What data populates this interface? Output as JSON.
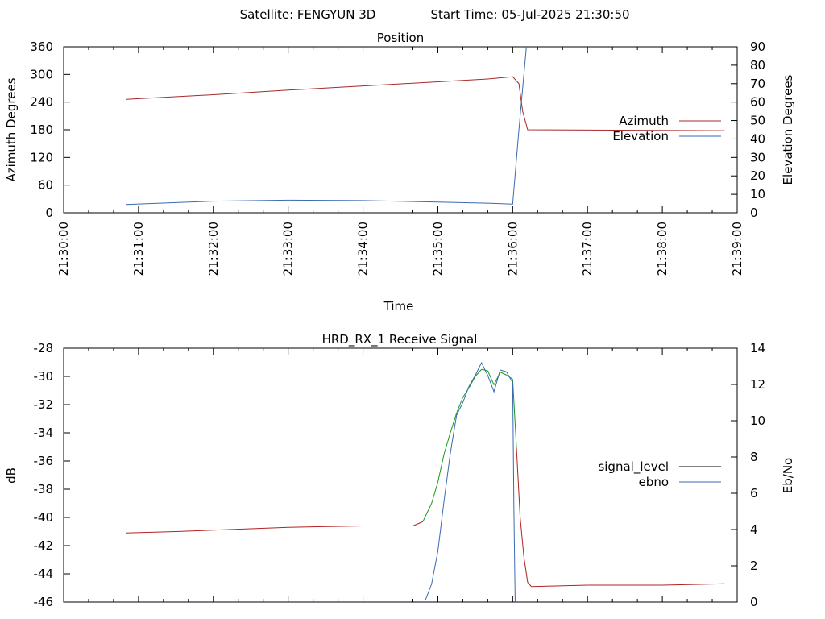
{
  "header": {
    "satellite": "Satellite: FENGYUN 3D",
    "start_time": "Start Time: 05-Jul-2025 21:30:50"
  },
  "colors": {
    "azimuth": "#a52a2a",
    "elevation": "#3a6ab0",
    "signal_level": "#000000",
    "ebno": "#3a6ab0",
    "signal_red": "#b22222",
    "signal_green": "#1a9a1a"
  },
  "chart_data": [
    {
      "type": "line",
      "title": "Position",
      "xlabel": "Time",
      "ylabel": "Azimuth Degrees",
      "y2label": "Elevation Degrees",
      "xlim": [
        "21:30:00",
        "21:39:00"
      ],
      "ylim": [
        0,
        360
      ],
      "y2lim": [
        0,
        90
      ],
      "x_ticks": [
        "21:30:00",
        "21:31:00",
        "21:32:00",
        "21:33:00",
        "21:34:00",
        "21:35:00",
        "21:36:00",
        "21:37:00",
        "21:38:00",
        "21:39:00"
      ],
      "y_ticks": [
        "0",
        "60",
        "120",
        "180",
        "240",
        "300",
        "360"
      ],
      "y2_ticks": [
        "0",
        "10",
        "20",
        "30",
        "40",
        "50",
        "60",
        "70",
        "80",
        "90"
      ],
      "legend_position": "right",
      "series": [
        {
          "name": "Azimuth",
          "axis": "y",
          "x": [
            "21:30:50",
            "21:32:00",
            "21:33:00",
            "21:34:00",
            "21:35:00",
            "21:35:40",
            "21:36:00",
            "21:36:05",
            "21:36:08",
            "21:36:12",
            "21:38:50"
          ],
          "y": [
            246,
            256,
            266,
            275,
            284,
            290,
            295,
            280,
            220,
            180,
            178
          ]
        },
        {
          "name": "Elevation",
          "axis": "y2",
          "x": [
            "21:30:50",
            "21:31:30",
            "21:32:00",
            "21:33:00",
            "21:34:00",
            "21:35:00",
            "21:35:40",
            "21:36:00",
            "21:36:05",
            "21:36:11"
          ],
          "y": [
            4.5,
            5.5,
            6.3,
            6.8,
            6.6,
            5.8,
            5.2,
            4.7,
            45,
            90
          ]
        }
      ]
    },
    {
      "type": "line",
      "title": "HRD_RX_1 Receive Signal",
      "ylabel": "dB",
      "y2label": "Eb/No",
      "xlim": [
        "21:30:00",
        "21:39:00"
      ],
      "ylim": [
        -46,
        -28
      ],
      "y2lim": [
        0,
        14
      ],
      "y_ticks": [
        "-28",
        "-30",
        "-32",
        "-34",
        "-36",
        "-38",
        "-40",
        "-42",
        "-44",
        "-46"
      ],
      "y2_ticks": [
        "0",
        "2",
        "4",
        "6",
        "8",
        "10",
        "12",
        "14"
      ],
      "legend_position": "right",
      "series": [
        {
          "name": "signal_level",
          "axis": "y",
          "x": [
            "21:30:50",
            "21:31:30",
            "21:32:00",
            "21:33:00",
            "21:34:00",
            "21:34:40",
            "21:34:48",
            "21:34:55",
            "21:35:00",
            "21:35:05",
            "21:35:10",
            "21:35:15",
            "21:35:20",
            "21:35:25",
            "21:35:30",
            "21:35:35",
            "21:35:40",
            "21:35:45",
            "21:35:50",
            "21:35:55",
            "21:36:00",
            "21:36:03",
            "21:36:06",
            "21:36:09",
            "21:36:12",
            "21:36:15",
            "21:37:00",
            "21:38:00",
            "21:38:50"
          ],
          "y": [
            -41.1,
            -41.0,
            -40.9,
            -40.7,
            -40.6,
            -40.6,
            -40.3,
            -39.0,
            -37.5,
            -35.5,
            -34.0,
            -32.6,
            -31.5,
            -30.8,
            -30.0,
            -29.5,
            -29.6,
            -30.6,
            -29.7,
            -29.9,
            -30.2,
            -35.0,
            -40.0,
            -42.8,
            -44.6,
            -44.9,
            -44.8,
            -44.8,
            -44.7
          ]
        },
        {
          "name": "ebno",
          "axis": "y2",
          "x": [
            "21:34:50",
            "21:34:55",
            "21:35:00",
            "21:35:05",
            "21:35:10",
            "21:35:15",
            "21:35:20",
            "21:35:25",
            "21:35:30",
            "21:35:35",
            "21:35:40",
            "21:35:45",
            "21:35:50",
            "21:35:55",
            "21:36:00",
            "21:36:01",
            "21:36:02"
          ],
          "y": [
            0.1,
            1.0,
            2.8,
            5.6,
            8.2,
            10.3,
            11.0,
            11.9,
            12.5,
            13.2,
            12.5,
            11.6,
            12.8,
            12.7,
            12.1,
            5.0,
            0.0
          ]
        }
      ]
    }
  ]
}
